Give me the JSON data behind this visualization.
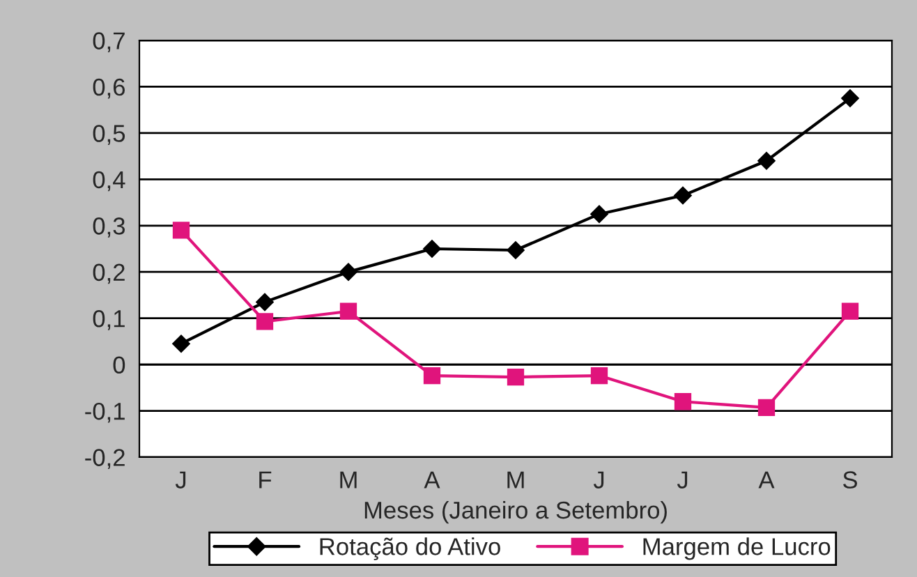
{
  "chart_data": {
    "type": "line",
    "xlabel": "Meses (Janeiro a Setembro)",
    "categories": [
      "J",
      "F",
      "M",
      "A",
      "M",
      "J",
      "J",
      "A",
      "S"
    ],
    "series": [
      {
        "name": "Rotação do Ativo",
        "color": "#000000",
        "marker": "diamond",
        "values": [
          0.045,
          0.135,
          0.2,
          0.25,
          0.247,
          0.325,
          0.365,
          0.44,
          0.575
        ]
      },
      {
        "name": "Margem de Lucro",
        "color": "#e0147c",
        "marker": "square",
        "values": [
          0.29,
          0.093,
          0.115,
          -0.024,
          -0.027,
          -0.024,
          -0.08,
          -0.093,
          0.115
        ]
      }
    ],
    "ylim": [
      -0.2,
      0.7
    ],
    "yticks": [
      {
        "value": -0.2,
        "label": "-0,2"
      },
      {
        "value": -0.1,
        "label": "-0,1"
      },
      {
        "value": 0,
        "label": "0"
      },
      {
        "value": 0.1,
        "label": "0,1"
      },
      {
        "value": 0.2,
        "label": "0,2"
      },
      {
        "value": 0.3,
        "label": "0,3"
      },
      {
        "value": 0.4,
        "label": "0,4"
      },
      {
        "value": 0.5,
        "label": "0,5"
      },
      {
        "value": 0.6,
        "label": "0,6"
      },
      {
        "value": 0.7,
        "label": "0,7"
      }
    ],
    "grid": "y",
    "legend": "bottom",
    "line_style": "solid"
  }
}
